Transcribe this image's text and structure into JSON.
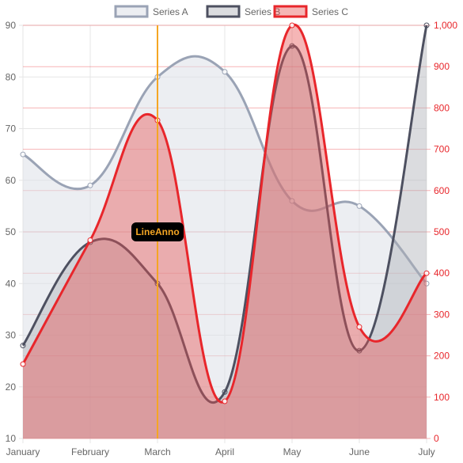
{
  "chart_data": {
    "type": "line",
    "categories": [
      "January",
      "February",
      "March",
      "April",
      "May",
      "June",
      "July"
    ],
    "series": [
      {
        "name": "Series A",
        "axis": "left",
        "values": [
          65,
          59,
          80,
          81,
          56,
          55,
          40
        ],
        "stroke": "#9aa3b5",
        "fill": "rgba(221,224,232,0.55)"
      },
      {
        "name": "Series B",
        "axis": "left",
        "values": [
          28,
          48,
          40,
          19,
          86,
          27,
          90
        ],
        "stroke": "#4d5060",
        "fill": "rgba(175,178,184,0.45)"
      },
      {
        "name": "Series C",
        "axis": "right",
        "values": [
          180,
          480,
          770,
          90,
          1000,
          270,
          400
        ],
        "stroke": "#e8262b",
        "fill": "rgba(230,80,80,0.42)"
      }
    ],
    "y_left": {
      "min": 10,
      "max": 90,
      "ticks": [
        "90",
        "80",
        "70",
        "60",
        "50",
        "40",
        "30",
        "20",
        "10"
      ]
    },
    "y_right": {
      "min": 0,
      "max": 1000,
      "ticks": [
        "1,000",
        "900",
        "800",
        "700",
        "600",
        "500",
        "400",
        "300",
        "200",
        "100",
        "0"
      ],
      "color": "#e8262b"
    },
    "annotation": {
      "label": "LineAnno",
      "category": "March",
      "line_color": "#f5a623",
      "text_color": "#f5a623",
      "box_color": "#000000"
    },
    "grid": true,
    "legend_position": "top"
  }
}
